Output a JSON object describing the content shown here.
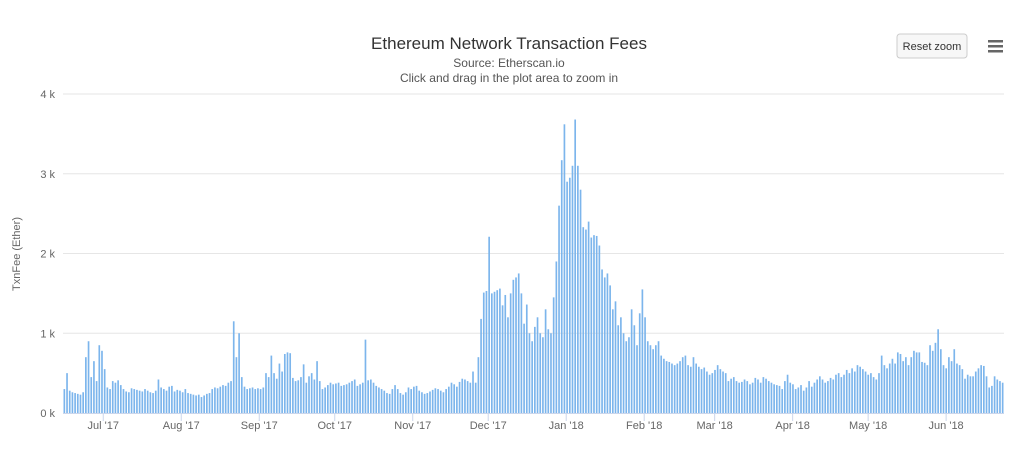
{
  "chart_data": {
    "type": "bar",
    "title": "Ethereum Network Transaction Fees",
    "subtitle_lines": [
      "Source: Etherscan.io",
      "Click and drag in the plot area to zoom in"
    ],
    "xlabel": "",
    "ylabel": "TxnFee (Ether)",
    "ylim": [
      0,
      4000
    ],
    "y_ticks": [
      0,
      1000,
      2000,
      3000,
      4000
    ],
    "y_tick_labels": [
      "0 k",
      "1 k",
      "2 k",
      "3 k",
      "4 k"
    ],
    "x_start_date": "2017-06-15",
    "x_end_date": "2018-06-24",
    "x_tick_labels": [
      {
        "date": "2017-07-01",
        "label": "Jul '17"
      },
      {
        "date": "2017-08-01",
        "label": "Aug '17"
      },
      {
        "date": "2017-09-01",
        "label": "Sep '17"
      },
      {
        "date": "2017-10-01",
        "label": "Oct '17"
      },
      {
        "date": "2017-11-01",
        "label": "Nov '17"
      },
      {
        "date": "2017-12-01",
        "label": "Dec '17"
      },
      {
        "date": "2018-01-01",
        "label": "Jan '18"
      },
      {
        "date": "2018-02-01",
        "label": "Feb '18"
      },
      {
        "date": "2018-03-01",
        "label": "Mar '18"
      },
      {
        "date": "2018-04-01",
        "label": "Apr '18"
      },
      {
        "date": "2018-05-01",
        "label": "May '18"
      },
      {
        "date": "2018-06-01",
        "label": "Jun '18"
      }
    ],
    "grid": true,
    "legend": "none",
    "series_color": "#7cb5ec",
    "series": [
      {
        "values": [
          300,
          500,
          280,
          260,
          250,
          240,
          230,
          260,
          700,
          900,
          450,
          650,
          400,
          850,
          780,
          550,
          320,
          300,
          400,
          380,
          410,
          350,
          300,
          270,
          260,
          310,
          300,
          290,
          280,
          270,
          300,
          280,
          260,
          250,
          280,
          420,
          320,
          300,
          280,
          330,
          340,
          270,
          290,
          280,
          260,
          300,
          250,
          240,
          230,
          220,
          230,
          200,
          220,
          240,
          250,
          300,
          320,
          310,
          330,
          350,
          340,
          380,
          400,
          1150,
          700,
          1000,
          450,
          330,
          300,
          310,
          320,
          300,
          310,
          300,
          320,
          500,
          450,
          720,
          500,
          430,
          620,
          520,
          740,
          760,
          750,
          440,
          400,
          410,
          450,
          610,
          380,
          460,
          500,
          420,
          650,
          400,
          300,
          320,
          350,
          380,
          360,
          370,
          380,
          340,
          350,
          360,
          380,
          400,
          420,
          340,
          360,
          380,
          920,
          410,
          420,
          380,
          340,
          320,
          300,
          280,
          250,
          240,
          300,
          350,
          300,
          250,
          230,
          260,
          320,
          300,
          330,
          340,
          280,
          260,
          240,
          250,
          270,
          290,
          310,
          300,
          280,
          260,
          300,
          330,
          380,
          360,
          330,
          390,
          430,
          420,
          400,
          380,
          520,
          380,
          700,
          1180,
          1510,
          1530,
          2210,
          1500,
          1520,
          1540,
          1560,
          1350,
          1480,
          1200,
          1500,
          1670,
          1700,
          1750,
          1500,
          1120,
          1360,
          1000,
          900,
          1080,
          1200,
          1000,
          950,
          1300,
          1050,
          1000,
          1450,
          1900,
          2600,
          3170,
          3620,
          2900,
          2950,
          3100,
          3680,
          3100,
          2800,
          2330,
          2300,
          2400,
          2200,
          2230,
          2220,
          2100,
          1800,
          1700,
          1750,
          1600,
          1300,
          1400,
          1100,
          1200,
          1000,
          900,
          950,
          1300,
          1100,
          850,
          1250,
          1550,
          1200,
          900,
          850,
          800,
          850,
          900,
          720,
          680,
          650,
          640,
          620,
          600,
          620,
          650,
          700,
          720,
          600,
          580,
          700,
          620,
          580,
          550,
          570,
          520,
          480,
          500,
          540,
          600,
          550,
          520,
          500,
          400,
          430,
          450,
          400,
          380,
          390,
          420,
          400,
          360,
          380,
          440,
          420,
          380,
          450,
          430,
          400,
          380,
          360,
          350,
          340,
          300,
          400,
          480,
          380,
          360,
          300,
          320,
          350,
          280,
          320,
          400,
          330,
          380,
          420,
          460,
          420,
          380,
          400,
          440,
          420,
          480,
          500,
          450,
          480,
          540,
          500,
          560,
          520,
          600,
          580,
          550,
          520,
          480,
          500,
          450,
          420,
          500,
          720,
          600,
          560,
          620,
          680,
          620,
          760,
          740,
          650,
          700,
          600,
          700,
          780,
          760,
          760,
          640,
          630,
          600,
          850,
          780,
          880,
          1050,
          800,
          600,
          560,
          700,
          650,
          800,
          620,
          600,
          550,
          430,
          480,
          460,
          460,
          520,
          560,
          600,
          590,
          460,
          320,
          340,
          460,
          420,
          400,
          380
        ]
      }
    ]
  },
  "toolbar": {
    "reset_zoom_label": "Reset zoom",
    "menu_icon": "hamburger-menu-icon"
  }
}
